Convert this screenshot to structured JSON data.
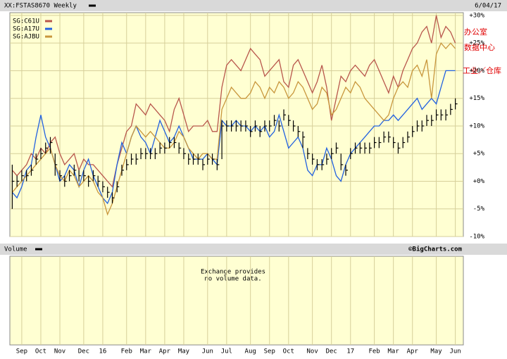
{
  "chart_data": {
    "type": "hlc-line",
    "title": "XX:FSTAS8670 Weekly",
    "date": "6/04/17",
    "categories": [
      null,
      null,
      "Sep",
      null,
      null,
      null,
      "Oct",
      null,
      null,
      null,
      "Nov",
      null,
      null,
      null,
      null,
      "Dec",
      null,
      null,
      null,
      "16",
      null,
      null,
      null,
      null,
      "Feb",
      null,
      null,
      null,
      "Mar",
      null,
      null,
      null,
      "Apr",
      null,
      null,
      null,
      "May",
      null,
      null,
      null,
      null,
      "Jun",
      null,
      null,
      null,
      "Jul",
      null,
      null,
      null,
      null,
      "Aug",
      null,
      null,
      null,
      "Sep",
      null,
      null,
      null,
      "Oct",
      null,
      null,
      null,
      null,
      "Nov",
      null,
      null,
      null,
      "Dec",
      null,
      null,
      null,
      "17",
      null,
      null,
      null,
      null,
      "Feb",
      null,
      null,
      null,
      "Mar",
      null,
      null,
      null,
      "Apr",
      null,
      null,
      null,
      null,
      "May",
      null,
      null,
      null,
      "Jun"
    ],
    "price": {
      "color": "#000000",
      "high": [
        3,
        1,
        2,
        2,
        3,
        5,
        6,
        7,
        8,
        5,
        2,
        1,
        2,
        3,
        2,
        2,
        1,
        2,
        1,
        0,
        -1,
        -2,
        0,
        3,
        4,
        5,
        5,
        6,
        6,
        6,
        6,
        7,
        7,
        8,
        8,
        7,
        6,
        5,
        5,
        5,
        4,
        5,
        5,
        4,
        11,
        11,
        11,
        11,
        11,
        11,
        10,
        11,
        10,
        11,
        11,
        12,
        11,
        13,
        12,
        11,
        10,
        9,
        6,
        5,
        4,
        4,
        5,
        6,
        7,
        5,
        3,
        6,
        7,
        7,
        7,
        7,
        8,
        8,
        9,
        9,
        8,
        7,
        8,
        9,
        10,
        11,
        11,
        12,
        12,
        13,
        13,
        13,
        14,
        15
      ],
      "low": [
        -5,
        -1,
        0,
        0,
        1,
        3,
        4,
        5,
        5,
        1,
        0,
        -1,
        0,
        1,
        0,
        0,
        -1,
        0,
        -1,
        -2,
        -3,
        -4,
        -2,
        1,
        2,
        3,
        3,
        4,
        4,
        4,
        4,
        5,
        5,
        6,
        6,
        5,
        4,
        3,
        3,
        3,
        2,
        3,
        3,
        2,
        4,
        9,
        9,
        9,
        9,
        9,
        8,
        9,
        8,
        9,
        9,
        10,
        9,
        11,
        10,
        9,
        8,
        6,
        4,
        3,
        2,
        2,
        3,
        4,
        5,
        2,
        1,
        4,
        5,
        5,
        5,
        5,
        6,
        6,
        7,
        7,
        6,
        5,
        6,
        7,
        8,
        9,
        9,
        10,
        10,
        11,
        11,
        11,
        12,
        13
      ],
      "close": [
        0,
        0,
        1,
        1,
        2,
        4,
        5,
        6,
        7,
        3,
        1,
        0,
        1,
        2,
        1,
        1,
        0,
        1,
        0,
        -1,
        -2,
        -3,
        -1,
        2,
        3,
        4,
        4,
        5,
        5,
        5,
        5,
        6,
        6,
        7,
        7,
        6,
        5,
        4,
        4,
        4,
        3,
        4,
        4,
        3,
        10,
        10,
        10,
        10,
        10,
        10,
        9,
        10,
        9,
        10,
        10,
        11,
        10,
        12,
        11,
        10,
        9,
        8,
        5,
        4,
        3,
        3,
        4,
        5,
        6,
        3,
        2,
        5,
        6,
        6,
        6,
        6,
        7,
        7,
        8,
        8,
        7,
        6,
        7,
        8,
        9,
        10,
        10,
        11,
        11,
        12,
        12,
        12,
        13,
        14
      ]
    },
    "series": [
      {
        "name": "SG:C61U",
        "color": "#b8564c",
        "values": [
          2,
          1,
          2,
          3,
          5,
          4,
          6,
          5,
          7,
          8,
          5,
          3,
          4,
          5,
          2,
          4,
          3,
          3,
          2,
          1,
          0,
          -1,
          3,
          6,
          9,
          10,
          14,
          13,
          12,
          14,
          13,
          12,
          11,
          9,
          13,
          15,
          12,
          9,
          10,
          10,
          10,
          11,
          9,
          9,
          17,
          21,
          22,
          21,
          20,
          22,
          24,
          23,
          22,
          19,
          20,
          21,
          22,
          18,
          17,
          21,
          22,
          20,
          18,
          16,
          18,
          21,
          17,
          11,
          15,
          19,
          18,
          20,
          21,
          20,
          19,
          21,
          22,
          20,
          18,
          16,
          19,
          17,
          20,
          22,
          24,
          25,
          27,
          28,
          25,
          30,
          26,
          28,
          27,
          25
        ]
      },
      {
        "name": "SG:A17U",
        "color": "#2060e0",
        "values": [
          -2,
          -3,
          -1,
          2,
          3,
          8,
          12,
          8,
          6,
          3,
          0,
          1,
          3,
          2,
          -1,
          2,
          4,
          1,
          -1,
          -3,
          -4,
          -2,
          3,
          7,
          5,
          8,
          10,
          8,
          7,
          5,
          8,
          11,
          9,
          7,
          8,
          10,
          8,
          6,
          4,
          4,
          4,
          5,
          4,
          3,
          11,
          10,
          10,
          11,
          10,
          10,
          9,
          10,
          9,
          10,
          8,
          9,
          12,
          9,
          6,
          7,
          8,
          6,
          2,
          1,
          3,
          3,
          6,
          4,
          1,
          0,
          3,
          5,
          6,
          7,
          8,
          9,
          10,
          10,
          11,
          11,
          12,
          11,
          12,
          13,
          14,
          15,
          13,
          14,
          15,
          14,
          17,
          20,
          20,
          20
        ]
      },
      {
        "name": "SG:AJBU",
        "color": "#c8963c",
        "values": [
          -2,
          -1,
          0,
          1,
          2,
          3,
          4,
          5,
          6,
          3,
          1,
          0,
          2,
          1,
          -1,
          0,
          1,
          0,
          -2,
          -3,
          -6,
          -4,
          -1,
          2,
          5,
          8,
          10,
          9,
          8,
          9,
          8,
          7,
          6,
          6,
          7,
          9,
          8,
          6,
          5,
          4,
          5,
          5,
          4,
          4,
          13,
          15,
          17,
          16,
          15,
          15,
          16,
          18,
          17,
          15,
          17,
          16,
          18,
          17,
          15,
          16,
          18,
          17,
          15,
          13,
          14,
          17,
          16,
          12,
          13,
          15,
          17,
          16,
          18,
          17,
          15,
          14,
          13,
          12,
          11,
          12,
          15,
          17,
          18,
          17,
          20,
          21,
          19,
          22,
          15,
          23,
          25,
          24,
          25,
          24
        ]
      }
    ],
    "ylim": [
      -10,
      30.5
    ],
    "yticks": [
      {
        "value": 30,
        "label": "+30%"
      },
      {
        "value": 25,
        "label": "+25%"
      },
      {
        "value": 20,
        "label": "+20%"
      },
      {
        "value": 15,
        "label": "+15%"
      },
      {
        "value": 10,
        "label": "+10%"
      },
      {
        "value": 5,
        "label": "+5%"
      },
      {
        "value": 0,
        "label": "+0%"
      },
      {
        "value": -5,
        "label": "-5%"
      },
      {
        "value": -10,
        "label": "-10%"
      }
    ],
    "grid": true,
    "annotations": [
      "办公室",
      "数据中心",
      "工业／仓库"
    ],
    "volume": {
      "title": "Volume",
      "message": [
        "Exchange provides",
        "no volume data."
      ]
    },
    "credit": "©BigCharts.com"
  }
}
